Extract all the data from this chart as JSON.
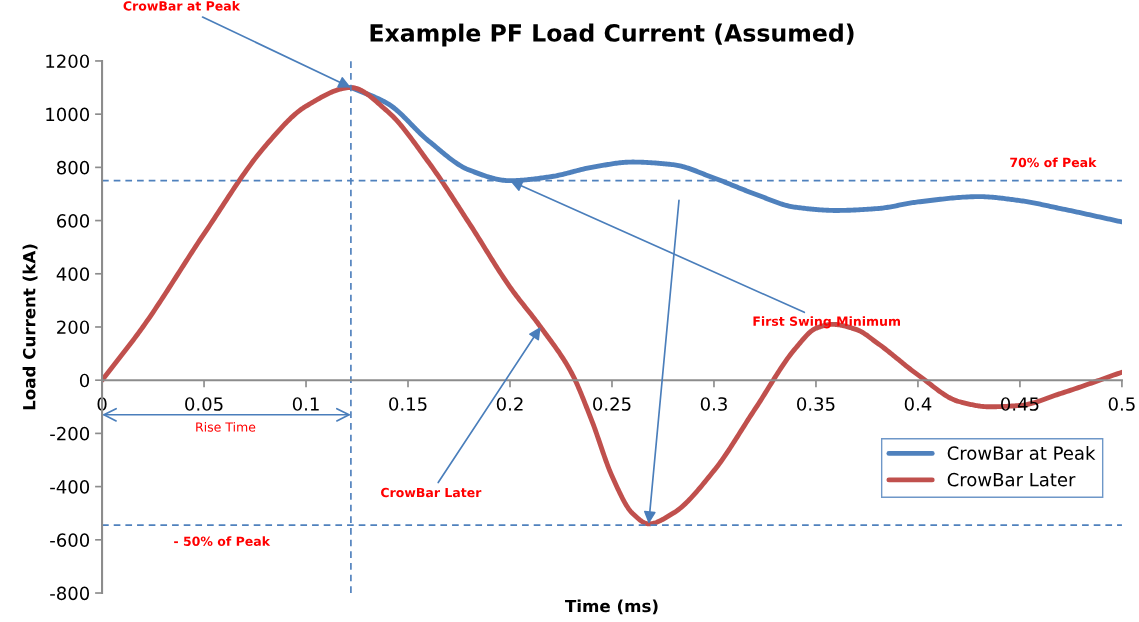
{
  "chart_data": {
    "type": "line",
    "title": "Example PF Load Current (Assumed)",
    "xlabel": "Time (ms)",
    "ylabel": "Load Current (kA)",
    "xlim": [
      0,
      0.5
    ],
    "xticks": [
      0,
      0.05,
      0.1,
      0.15,
      0.2,
      0.25,
      0.3,
      0.35,
      0.4,
      0.45,
      0.5
    ],
    "ylim": [
      -800,
      1200
    ],
    "yticks": [
      -800,
      -600,
      -400,
      -200,
      0,
      200,
      400,
      600,
      800,
      1000,
      1200
    ],
    "grid": false,
    "legend": "right",
    "marker": "none",
    "line_style": "solid",
    "series": [
      {
        "name": "CrowBar at Peak",
        "color": "#4f81bd",
        "x": [
          0.122,
          0.14,
          0.16,
          0.18,
          0.2,
          0.22,
          0.24,
          0.26,
          0.28,
          0.3,
          0.32,
          0.34,
          0.36,
          0.38,
          0.4,
          0.43,
          0.45,
          0.47,
          0.5
        ],
        "values": [
          1100,
          1040,
          900,
          790,
          750,
          765,
          800,
          820,
          810,
          760,
          700,
          650,
          638,
          645,
          670,
          690,
          675,
          645,
          595
        ]
      },
      {
        "name": "CrowBar Later",
        "color": "#c0504d",
        "x": [
          0,
          0.02,
          0.05,
          0.08,
          0.1,
          0.122,
          0.14,
          0.16,
          0.18,
          0.2,
          0.215,
          0.23,
          0.24,
          0.25,
          0.26,
          0.268,
          0.28,
          0.3,
          0.32,
          0.34,
          0.35,
          0.358,
          0.37,
          0.38,
          0.4,
          0.42,
          0.435,
          0.45,
          0.47,
          0.5
        ],
        "values": [
          0,
          200,
          550,
          880,
          1030,
          1100,
          1010,
          820,
          590,
          350,
          200,
          30,
          -150,
          -360,
          -500,
          -540,
          -500,
          -340,
          -110,
          120,
          195,
          210,
          190,
          140,
          20,
          -80,
          -100,
          -95,
          -50,
          30
        ]
      }
    ],
    "ref_lines": [
      {
        "axis": "y",
        "value": 750,
        "label": "70% of Peak",
        "color": "#4f81bd",
        "line_style": "dashed"
      },
      {
        "axis": "y",
        "value": -545,
        "label": "- 50% of Peak",
        "color": "#4f81bd",
        "line_style": "dashed"
      },
      {
        "axis": "x",
        "value": 0.122,
        "color": "#4f81bd",
        "line_style": "dashed"
      }
    ],
    "annotations": [
      {
        "text": "CrowBar at Peak",
        "x": 0.122,
        "y": 1100
      },
      {
        "text": "First Swing Minimum",
        "x": 0.2,
        "y": 750
      },
      {
        "text": "CrowBar Later",
        "x": 0.215,
        "y": 200
      },
      "Rise Time"
    ]
  }
}
